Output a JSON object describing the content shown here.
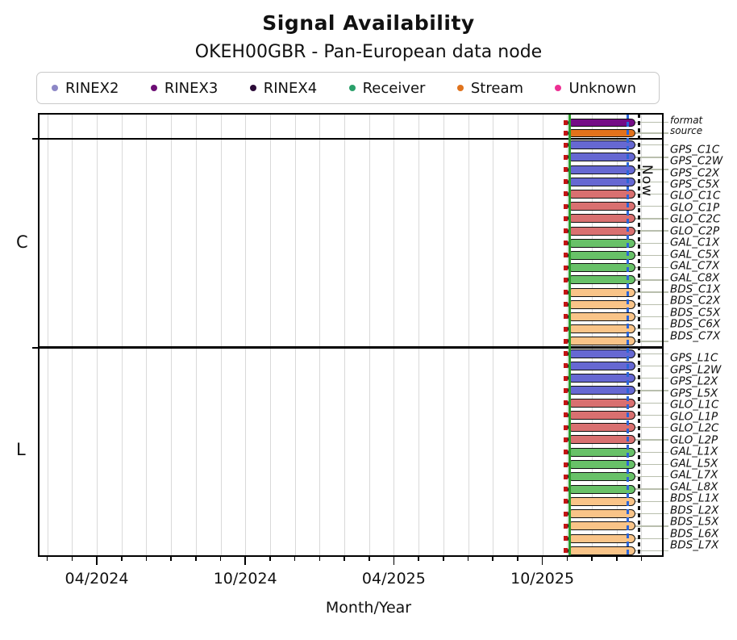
{
  "title": "Signal Availability",
  "subtitle": "OKEH00GBR - Pan-European data node",
  "legend": {
    "items": [
      {
        "label": "RINEX2",
        "color": "#8d87c6"
      },
      {
        "label": "RINEX3",
        "color": "#6c0d74"
      },
      {
        "label": "RINEX4",
        "color": "#2b0b38"
      },
      {
        "label": "Receiver",
        "color": "#2aa06a"
      },
      {
        "label": "Stream",
        "color": "#e0731d"
      },
      {
        "label": "Unknown",
        "color": "#ed2f93"
      }
    ]
  },
  "axis": {
    "xlabel": "Month/Year",
    "major_tick_labels": [
      "04/2024",
      "10/2024",
      "04/2025",
      "10/2025"
    ]
  },
  "now_label": "Now",
  "section_labels": [
    "C",
    "L"
  ],
  "colors": {
    "constellations": {
      "GPS": "#6668d2",
      "GLO": "#d97070",
      "GAL": "#68c168",
      "BDS": "#f9c488"
    },
    "bar_border": "#101010",
    "receiver_line": "#2c9b2c",
    "latest_line": "#2b65d9",
    "now_line": "#111111",
    "start_marker": "#c31414",
    "gridline": "#d9d9d9",
    "leader": "#b9bfae"
  },
  "chart_data": {
    "type": "bar",
    "subtype": "signal-availability-timeline",
    "title": "Signal Availability",
    "subtitle": "OKEH00GBR - Pan-European data node",
    "xlabel": "Month/Year",
    "x_major_ticks": [
      "04/2024",
      "10/2024",
      "04/2025",
      "10/2025"
    ],
    "x_minor_tick_interval": "1 month",
    "x_range_approx": [
      "2024-01-18",
      "2026-02-27"
    ],
    "grid": "vertical monthly gridlines, light gray",
    "legend_position": "top, horizontal, boxed",
    "availability_window_approx": {
      "start": "2025-11-04",
      "end": "2026-01-22",
      "applies_to": "all format/source and signal rows (single continuous segment each)"
    },
    "event_lines": [
      {
        "name": "receiver-start",
        "style": "solid",
        "color": "#2c9b2c",
        "x_approx": "2025-11-04"
      },
      {
        "name": "latest-data",
        "style": "dashed",
        "color": "#2b65d9",
        "x_approx": "2026-01-14"
      },
      {
        "name": "now",
        "style": "dashed",
        "color": "#111111",
        "x_approx": "2026-01-28",
        "label": "Now"
      }
    ],
    "top_panel_rows": [
      {
        "name": "format",
        "category": "RINEX3",
        "color": "#750c86"
      },
      {
        "name": "source",
        "category": "Stream",
        "color": "#e2721c"
      }
    ],
    "sections": [
      {
        "label": "C",
        "rows": [
          {
            "name": "GPS_C1C",
            "constellation": "GPS"
          },
          {
            "name": "GPS_C2W",
            "constellation": "GPS"
          },
          {
            "name": "GPS_C2X",
            "constellation": "GPS"
          },
          {
            "name": "GPS_C5X",
            "constellation": "GPS"
          },
          {
            "name": "GLO_C1C",
            "constellation": "GLO"
          },
          {
            "name": "GLO_C1P",
            "constellation": "GLO"
          },
          {
            "name": "GLO_C2C",
            "constellation": "GLO"
          },
          {
            "name": "GLO_C2P",
            "constellation": "GLO"
          },
          {
            "name": "GAL_C1X",
            "constellation": "GAL"
          },
          {
            "name": "GAL_C5X",
            "constellation": "GAL"
          },
          {
            "name": "GAL_C7X",
            "constellation": "GAL"
          },
          {
            "name": "GAL_C8X",
            "constellation": "GAL"
          },
          {
            "name": "BDS_C1X",
            "constellation": "BDS"
          },
          {
            "name": "BDS_C2X",
            "constellation": "BDS"
          },
          {
            "name": "BDS_C5X",
            "constellation": "BDS"
          },
          {
            "name": "BDS_C6X",
            "constellation": "BDS"
          },
          {
            "name": "BDS_C7X",
            "constellation": "BDS"
          }
        ]
      },
      {
        "label": "L",
        "rows": [
          {
            "name": "GPS_L1C",
            "constellation": "GPS"
          },
          {
            "name": "GPS_L2W",
            "constellation": "GPS"
          },
          {
            "name": "GPS_L2X",
            "constellation": "GPS"
          },
          {
            "name": "GPS_L5X",
            "constellation": "GPS"
          },
          {
            "name": "GLO_L1C",
            "constellation": "GLO"
          },
          {
            "name": "GLO_L1P",
            "constellation": "GLO"
          },
          {
            "name": "GLO_L2C",
            "constellation": "GLO"
          },
          {
            "name": "GLO_L2P",
            "constellation": "GLO"
          },
          {
            "name": "GAL_L1X",
            "constellation": "GAL"
          },
          {
            "name": "GAL_L5X",
            "constellation": "GAL"
          },
          {
            "name": "GAL_L7X",
            "constellation": "GAL"
          },
          {
            "name": "GAL_L8X",
            "constellation": "GAL"
          },
          {
            "name": "BDS_L1X",
            "constellation": "BDS"
          },
          {
            "name": "BDS_L2X",
            "constellation": "BDS"
          },
          {
            "name": "BDS_L5X",
            "constellation": "BDS"
          },
          {
            "name": "BDS_L6X",
            "constellation": "BDS"
          },
          {
            "name": "BDS_L7X",
            "constellation": "BDS"
          }
        ]
      }
    ]
  }
}
